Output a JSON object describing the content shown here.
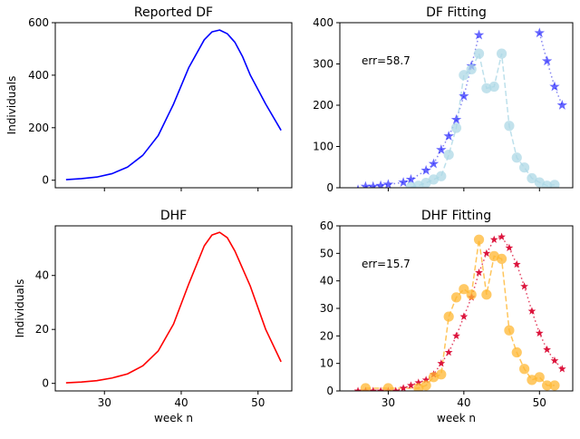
{
  "chart_data": [
    {
      "type": "line",
      "title": "Reported DF",
      "xlabel": "",
      "ylabel": "Individuals",
      "xlim": [
        23.6,
        54.4
      ],
      "ylim": [
        -28.7,
        600
      ],
      "xticks": [
        30,
        40,
        50
      ],
      "show_xtick_labels": false,
      "yticks": [
        0,
        200,
        400,
        600
      ],
      "grid": false,
      "series": [
        {
          "color": "#0000ff",
          "style": "solid",
          "x": [
            25,
            27,
            29,
            31,
            33,
            35,
            37,
            39,
            41,
            43,
            44,
            45,
            46,
            47,
            48,
            49,
            51,
            53
          ],
          "y": [
            2,
            6,
            12,
            25,
            50,
            95,
            170,
            290,
            430,
            535,
            565,
            572,
            558,
            525,
            470,
            400,
            290,
            190
          ]
        }
      ]
    },
    {
      "type": "scatter",
      "title": "DF Fitting",
      "xlabel": "",
      "ylabel": "",
      "xlim": [
        23.6,
        54.4
      ],
      "ylim": [
        0,
        400
      ],
      "xticks": [
        30,
        40,
        50
      ],
      "show_xtick_labels": false,
      "yticks": [
        0,
        100,
        200,
        300,
        400
      ],
      "grid": false,
      "annotation": "err=58.7",
      "series": [
        {
          "marker": "star",
          "color": "#0000ff",
          "line_style": "dotted",
          "line_color": "#6666ee",
          "x": [
            26,
            27,
            28,
            29,
            30,
            32,
            33,
            35,
            36,
            37,
            38,
            39,
            40,
            41,
            42
          ],
          "y": [
            -5,
            3,
            3,
            5,
            8,
            13,
            20,
            42,
            58,
            92,
            125,
            165,
            222,
            295,
            370
          ]
        },
        {
          "marker": "star",
          "color": "#0000ff",
          "line_style": "dotted",
          "line_color": "#6666ee",
          "x": [
            50,
            51,
            52,
            53
          ],
          "y": [
            375,
            307,
            245,
            200
          ]
        },
        {
          "marker": "circle",
          "color": "#add8e6",
          "line_style": "dashed",
          "line_color": "#add8e6",
          "x": [
            33,
            34,
            35,
            36,
            37,
            38,
            39,
            40,
            41,
            42,
            43,
            44,
            45,
            46,
            47,
            48,
            49,
            50,
            51,
            52
          ],
          "y": [
            2,
            5,
            12,
            20,
            28,
            80,
            145,
            273,
            287,
            325,
            241,
            245,
            325,
            150,
            73,
            49,
            23,
            13,
            5,
            7
          ]
        }
      ]
    },
    {
      "type": "line",
      "title": "DHF",
      "xlabel": "week n",
      "ylabel": "Individuals",
      "xlim": [
        23.6,
        54.4
      ],
      "ylim": [
        -2.8,
        58.4
      ],
      "xticks": [
        30,
        40,
        50
      ],
      "show_xtick_labels": true,
      "yticks": [
        0,
        20,
        40
      ],
      "grid": false,
      "series": [
        {
          "color": "#ff0000",
          "style": "solid",
          "x": [
            25,
            27,
            29,
            31,
            33,
            35,
            37,
            39,
            41,
            43,
            44,
            45,
            46,
            47,
            49,
            51,
            53
          ],
          "y": [
            0.2,
            0.5,
            1,
            2,
            3.5,
            6.5,
            12,
            22,
            37,
            51,
            55,
            56,
            54,
            49,
            36,
            20,
            8
          ]
        }
      ]
    },
    {
      "type": "scatter",
      "title": "DHF Fitting",
      "xlabel": "week n",
      "ylabel": "",
      "xlim": [
        23.6,
        54.4
      ],
      "ylim": [
        0,
        60
      ],
      "xticks": [
        30,
        40,
        50
      ],
      "show_xtick_labels": true,
      "yticks": [
        0,
        10,
        20,
        30,
        40,
        50,
        60
      ],
      "grid": false,
      "annotation": "err=15.7",
      "series": [
        {
          "marker": "star",
          "color": "#dc143c",
          "line_style": "dotted",
          "line_color": "#dc143c",
          "x": [
            26,
            27,
            28,
            29,
            30,
            31,
            32,
            33,
            34,
            35,
            36,
            37,
            38,
            39,
            40,
            41,
            42,
            43,
            44,
            45,
            46,
            47,
            48,
            49,
            50,
            51,
            52,
            53
          ],
          "y": [
            0,
            0,
            0,
            0,
            0,
            0,
            1,
            2,
            3,
            4,
            6,
            10,
            14,
            20,
            27,
            34,
            43,
            50,
            55,
            56,
            52,
            46,
            38,
            29,
            21,
            15,
            11,
            8
          ]
        },
        {
          "marker": "circle",
          "color": "#ffb732",
          "line_style": "dashed",
          "line_color": "#ffb732",
          "x": [
            27,
            30,
            34,
            35,
            36,
            37,
            38,
            39,
            40,
            41,
            42,
            43,
            44,
            45,
            46,
            47,
            48,
            49,
            50,
            51,
            52
          ],
          "y": [
            1,
            1,
            1,
            2,
            5,
            6,
            27,
            34,
            37,
            35,
            55,
            35,
            49,
            48,
            22,
            14,
            8,
            4,
            5,
            2,
            2
          ]
        }
      ]
    }
  ]
}
